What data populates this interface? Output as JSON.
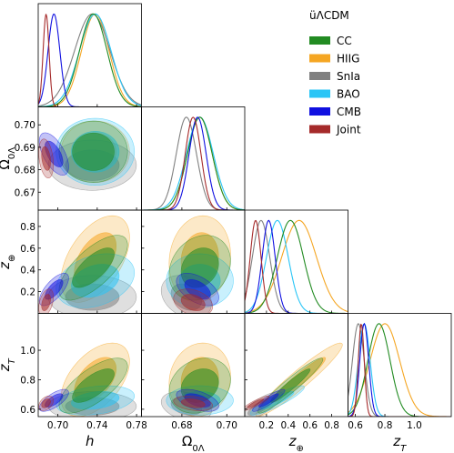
{
  "chart_data": {
    "type": "triangle",
    "legend_title": "üΛCDM",
    "legend_position": "top-right",
    "params": [
      {
        "key": "h",
        "label": "h",
        "range": [
          0.68,
          0.785
        ],
        "ticks": [
          0.7,
          0.74,
          0.78
        ],
        "tick_labels": [
          "0.70",
          "0.74",
          "0.78"
        ]
      },
      {
        "key": "omega",
        "label": "Ω",
        "label_sub": "0Λ",
        "range": [
          0.662,
          0.708
        ],
        "ticks": [
          0.67,
          0.68,
          0.69,
          0.7
        ],
        "tick_labels_y": [
          "0.67",
          "0.68",
          "0.69",
          "0.70"
        ],
        "ticks_x": [
          0.68,
          0.7
        ],
        "tick_labels_x": [
          "0.68",
          "0.70"
        ]
      },
      {
        "key": "zp",
        "label": "z",
        "label_sub": "⊕",
        "range": [
          0.0,
          0.95
        ],
        "ticks": [
          0.2,
          0.4,
          0.6,
          0.8
        ],
        "tick_labels": [
          "0.2",
          "0.4",
          "0.6",
          "0.8"
        ]
      },
      {
        "key": "zt",
        "label": "z",
        "label_sub": "T",
        "range": [
          0.55,
          1.25
        ],
        "ticks": [
          0.6,
          0.8,
          1.0
        ],
        "tick_labels": [
          "0.6",
          "0.8",
          "1.0"
        ]
      }
    ],
    "series": [
      {
        "name": "CC",
        "color": "#228B22",
        "mean": {
          "h": 0.736,
          "omega": 0.688,
          "zp": 0.42,
          "zt": 0.76
        },
        "sigma": {
          "h": 0.014,
          "omega": 0.0055,
          "zp": 0.12,
          "zt": 0.075
        },
        "corr": {
          "h|zp": 0.7,
          "h|zt": 0.7,
          "omega|zp": 0.2,
          "omega|zt": 0.2,
          "zp|zt": 0.95
        }
      },
      {
        "name": "HIIG",
        "color": "#F5A623",
        "mean": {
          "h": 0.738,
          "omega": 0.688,
          "zp": 0.5,
          "zt": 0.8
        },
        "sigma": {
          "h": 0.014,
          "omega": 0.0055,
          "zp": 0.16,
          "zt": 0.1
        },
        "corr": {
          "h|zp": 0.5,
          "h|zt": 0.5,
          "omega|zp": 0.1,
          "omega|zt": 0.1,
          "zp|zt": 0.95
        }
      },
      {
        "name": "SnIa",
        "color": "#808080",
        "mean": {
          "h": 0.735,
          "omega": 0.682,
          "zp": 0.15,
          "zt": 0.62
        },
        "sigma": {
          "h": 0.018,
          "omega": 0.0045,
          "zp": 0.08,
          "zt": 0.04
        },
        "corr": {
          "h|zp": 0.0,
          "h|zt": 0.0,
          "omega|zp": -0.3,
          "omega|zt": -0.3,
          "zp|zt": 0.8
        }
      },
      {
        "name": "BAO",
        "color": "#29C5F6",
        "mean": {
          "h": 0.738,
          "omega": 0.688,
          "zp": 0.3,
          "zt": 0.66
        },
        "sigma": {
          "h": 0.016,
          "omega": 0.006,
          "zp": 0.1,
          "zt": 0.04
        },
        "corr": {
          "h|zp": 0.3,
          "h|zt": 0.3,
          "omega|zp": 0.0,
          "omega|zt": 0.0,
          "zp|zt": 0.9
        }
      },
      {
        "name": "CMB",
        "color": "#1010E0",
        "mean": {
          "h": 0.696,
          "omega": 0.687,
          "zp": 0.22,
          "zt": 0.66
        },
        "sigma": {
          "h": 0.006,
          "omega": 0.0038,
          "zp": 0.06,
          "zt": 0.03
        },
        "corr": {
          "h|omega": -0.6,
          "h|zp": 0.7,
          "h|zt": 0.7,
          "omega|zp": -0.5,
          "omega|zt": -0.5,
          "zp|zt": 0.9
        }
      },
      {
        "name": "Joint",
        "color": "#A52A2A",
        "mean": {
          "h": 0.688,
          "omega": 0.685,
          "zp": 0.1,
          "zt": 0.64
        },
        "sigma": {
          "h": 0.003,
          "omega": 0.0035,
          "zp": 0.05,
          "zt": 0.02
        },
        "corr": {
          "h|omega": -0.3,
          "h|zp": 0.4,
          "h|zt": 0.4,
          "omega|zp": -0.3,
          "omega|zt": -0.3,
          "zp|zt": 0.9
        }
      }
    ]
  }
}
